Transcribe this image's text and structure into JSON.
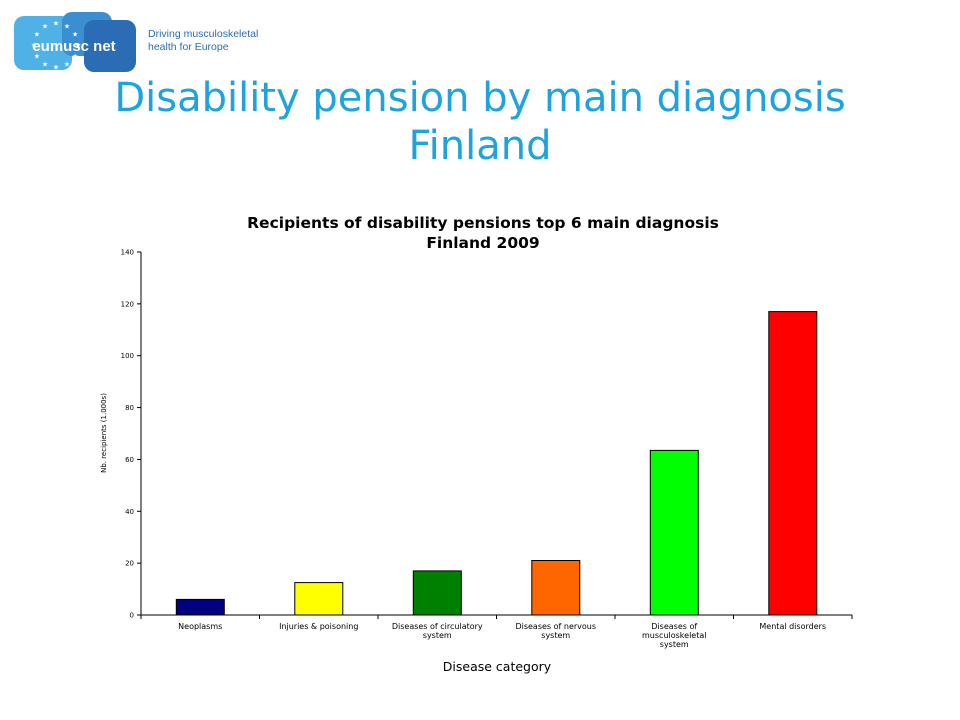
{
  "logo": {
    "name": "eumusc net",
    "tagline_line1": "Driving musculoskeletal",
    "tagline_line2": "health for Europe",
    "colors": {
      "dark_blue": "#2a6db5",
      "light_blue": "#4fb1e5",
      "mid_blue": "#3b8fd0"
    }
  },
  "slide": {
    "title_line1": "Disability pension by main diagnosis",
    "title_line2": "Finland",
    "title_color": "#1ea3dc"
  },
  "chart_data": {
    "type": "bar",
    "title_line1": "Recipients of disability pensions top 6 main diagnosis",
    "title_line2": "Finland 2009",
    "xlabel": "Disease category",
    "ylabel": "Nb. recipients (1.000s)",
    "ylim": [
      0,
      140
    ],
    "yticks": [
      0,
      20,
      40,
      60,
      80,
      100,
      120,
      140
    ],
    "grid": false,
    "categories": [
      [
        "Neoplasms"
      ],
      [
        "Injuries & poisoning"
      ],
      [
        "Diseases of circulatory",
        "system"
      ],
      [
        "Diseases of nervous",
        "system"
      ],
      [
        "Diseases of",
        "musculoskeletal",
        "system"
      ],
      [
        "Mental disorders"
      ]
    ],
    "values": [
      6,
      12.5,
      17,
      21,
      63.5,
      117
    ],
    "colors": [
      "#000080",
      "#ffff00",
      "#008000",
      "#ff6600",
      "#00ff00",
      "#ff0000"
    ]
  }
}
